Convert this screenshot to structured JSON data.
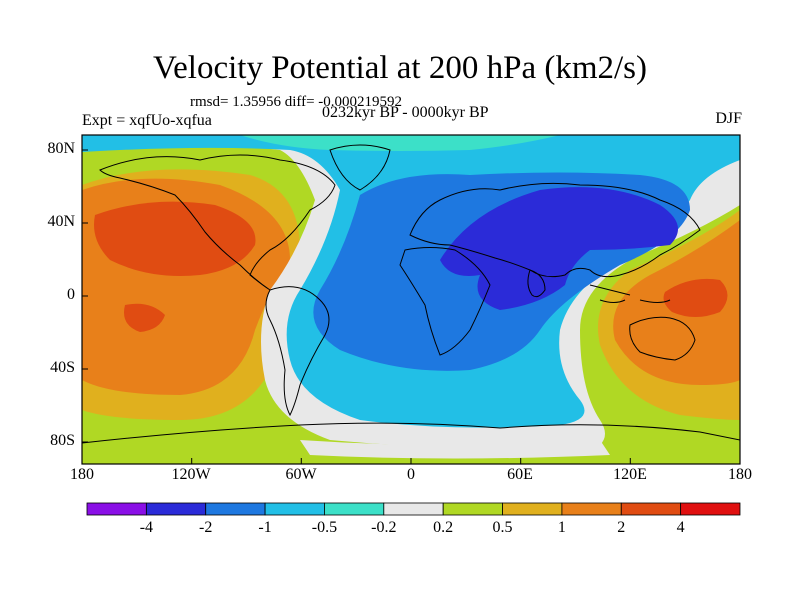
{
  "title": "Velocity Potential at 200 hPa (km2/s)",
  "stats": "rmsd= 1.35956 diff= -0.000219592",
  "experiment": "Expt = xqfUo-xqfua",
  "period": "0232kyr BP - 0000kyr BP",
  "season": "DJF",
  "y_axis_labels": [
    "80N",
    "40N",
    "0",
    "40S",
    "80S"
  ],
  "x_axis_labels": [
    "180",
    "120W",
    "60W",
    "0",
    "60E",
    "120E",
    "180"
  ],
  "colorbar": {
    "colors": [
      "#8a0fe6",
      "#2b2bd8",
      "#1e78e0",
      "#22bfe6",
      "#3ce0c8",
      "#e8e8e8",
      "#b0d824",
      "#e0b01e",
      "#e8801a",
      "#e04c12",
      "#e01010"
    ],
    "labels": [
      "-4",
      "-2",
      "-1",
      "-0.5",
      "-0.2",
      "0.2",
      "0.5",
      "1",
      "2",
      "4"
    ]
  }
}
